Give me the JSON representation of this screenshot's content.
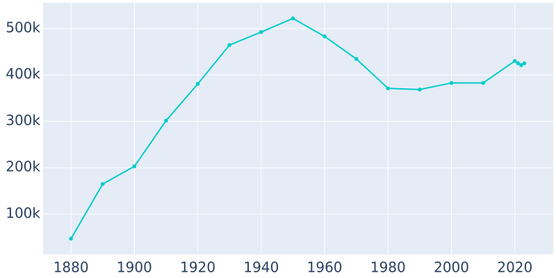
{
  "chart_data": {
    "type": "line",
    "x": [
      1880,
      1890,
      1900,
      1910,
      1920,
      1930,
      1940,
      1950,
      1960,
      1970,
      1980,
      1990,
      2000,
      2010,
      2020,
      2021,
      2022,
      2023
    ],
    "series": [
      {
        "color": "#00cccc",
        "values": [
          46887,
          164738,
          202718,
          301408,
          380582,
          464356,
          492370,
          521718,
          482872,
          434400,
          370951,
          368383,
          382618,
          382578,
          429954,
          425000,
          421000,
          425000
        ]
      }
    ],
    "xlim": [
      1871.2,
      2032.1
    ],
    "xticks": [
      1880,
      1900,
      1920,
      1940,
      1960,
      1980,
      2000,
      2020
    ],
    "ylim": [
      13100,
      555400
    ],
    "yticks": [
      {
        "value": 100000,
        "label": "100k"
      },
      {
        "value": 200000,
        "label": "200k"
      },
      {
        "value": 300000,
        "label": "300k"
      },
      {
        "value": 400000,
        "label": "400k"
      },
      {
        "value": 500000,
        "label": "500k"
      }
    ],
    "grid": true
  }
}
